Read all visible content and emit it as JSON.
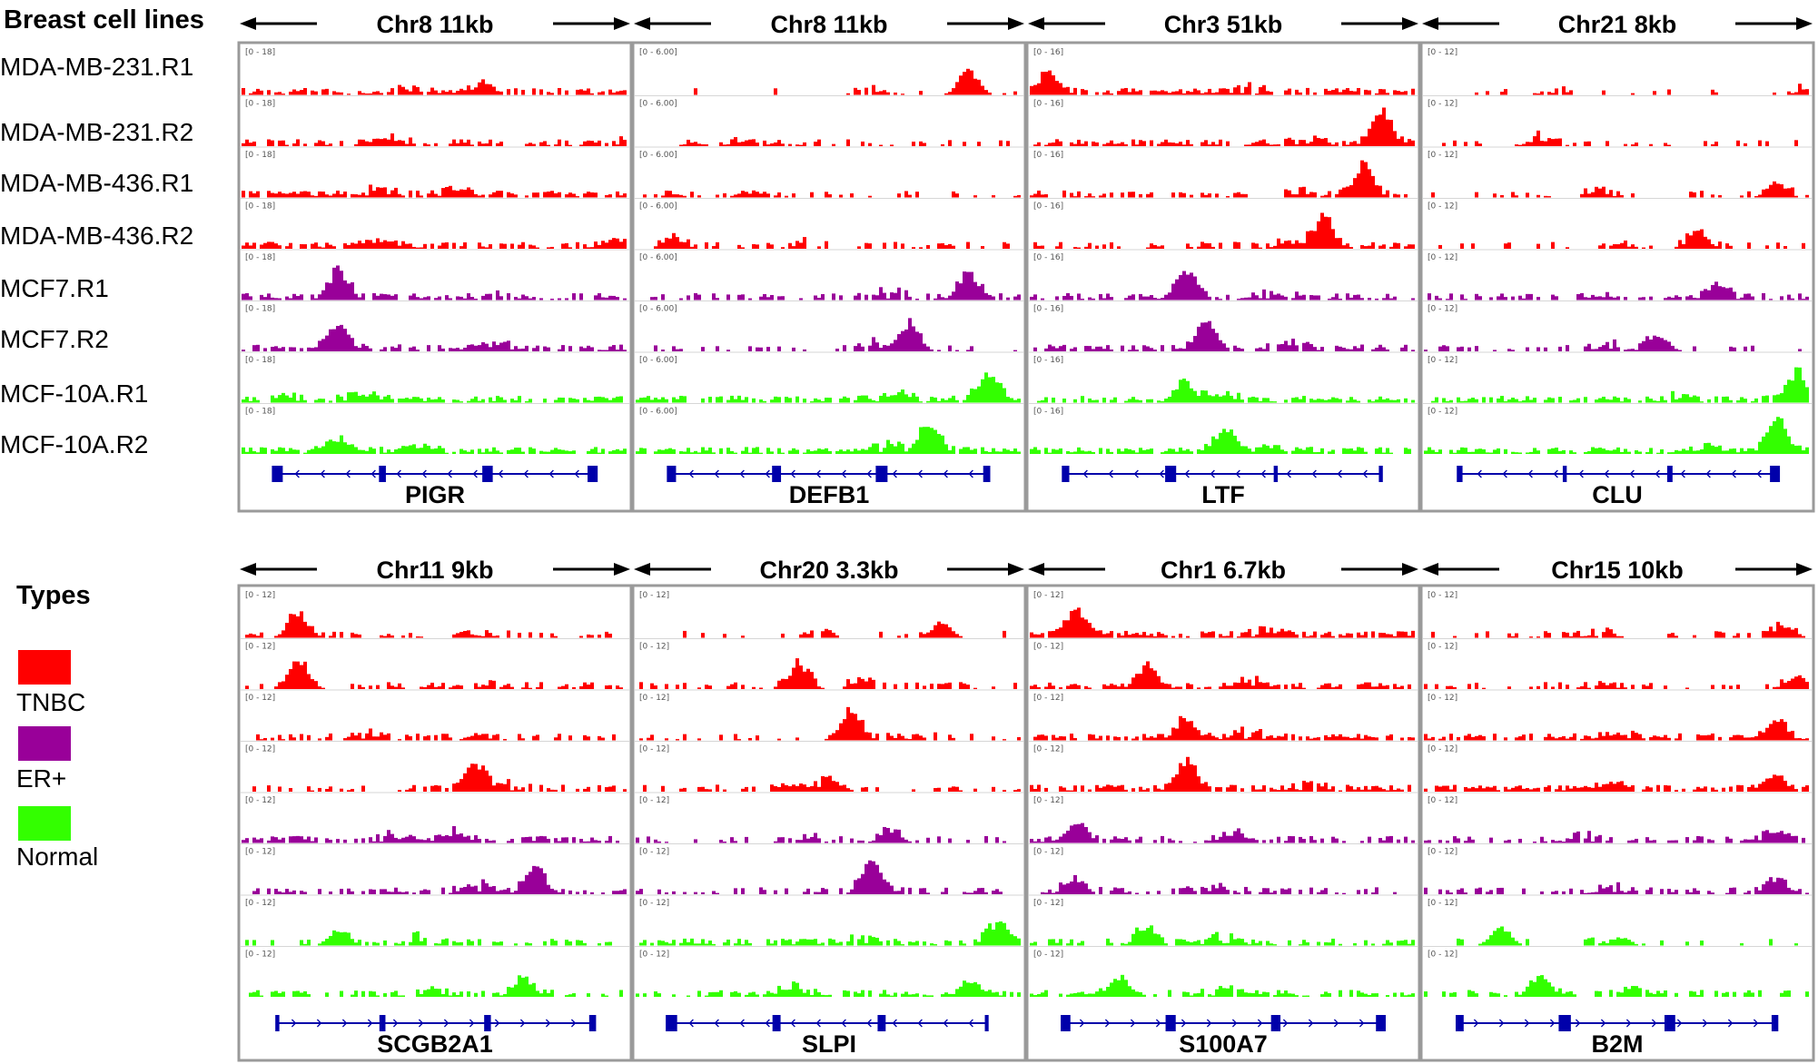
{
  "title": "Breast cell lines",
  "cell_lines": [
    "MDA-MB-231.R1",
    "MDA-MB-231.R2",
    "MDA-MB-436.R1",
    "MDA-MB-436.R2",
    "MCF7.R1",
    "MCF7.R2",
    "MCF-10A.R1",
    "MCF-10A.R2"
  ],
  "track_types": [
    "TNBC",
    "TNBC",
    "TNBC",
    "TNBC",
    "ER+",
    "ER+",
    "Normal",
    "Normal"
  ],
  "legend": {
    "title": "Types",
    "items": [
      {
        "label": "TNBC",
        "color": "#ff0000"
      },
      {
        "label": "ER+",
        "color": "#990099"
      },
      {
        "label": "Normal",
        "color": "#33ff00"
      }
    ]
  },
  "colors": {
    "TNBC": "#ff0000",
    "ER+": "#990099",
    "Normal": "#33ff00",
    "gene": "#0000aa",
    "border": "#9a9a9a"
  },
  "panels": [
    {
      "region": "Chr8 11kb",
      "range": "[0 - 18]",
      "gene": "PIGR",
      "strand": "-",
      "peaks": [
        [
          0.62,
          1.0,
          0.55,
          0.95,
          0.25,
          0.25,
          0.12,
          0.25
        ],
        [
          0.32,
          0.25,
          0.2,
          0.2,
          0.85,
          0.8,
          0.12,
          0.4
        ]
      ],
      "density": [
        0.85,
        0.85,
        0.9,
        0.9,
        0.7,
        0.7,
        0.9,
        0.95
      ]
    },
    {
      "region": "Chr8 11kb",
      "range": "[0 - 6.00]",
      "gene": "DEFB1",
      "strand": "-",
      "peaks": [
        [
          0.85,
          0.15,
          0.1,
          0.1,
          0.85,
          0.7,
          0.9,
          0.75
        ],
        [
          0.72,
          0.1,
          0.1,
          0.35,
          0.8,
          0.75,
          0.85,
          0.8
        ]
      ],
      "density": [
        0.08,
        0.3,
        0.35,
        0.35,
        0.45,
        0.4,
        0.85,
        0.9
      ]
    },
    {
      "region": "Chr3 51kb",
      "range": "[0 - 16]",
      "gene": "LTF",
      "strand": "-",
      "peaks": [
        [
          0.05,
          0.9,
          0.85,
          0.75,
          0.4,
          0.45,
          0.4,
          0.5
        ],
        [
          0.6,
          0.95,
          0.9,
          0.85,
          0.75,
          0.85,
          0.5,
          0.75
        ]
      ],
      "density": [
        0.9,
        0.9,
        0.6,
        0.6,
        0.8,
        0.8,
        0.9,
        0.95
      ]
    },
    {
      "region": "Chr21 8kb",
      "range": "[0 - 12]",
      "gene": "CLU",
      "strand": "-",
      "peaks": [
        [
          0.98,
          0.3,
          0.9,
          0.7,
          0.75,
          0.6,
          0.95,
          0.9
        ],
        [
          0.2,
          0.1,
          0.4,
          0.5,
          0.4,
          0.45,
          0.8,
          0.95
        ]
      ],
      "density": [
        0.15,
        0.25,
        0.3,
        0.3,
        0.6,
        0.4,
        0.85,
        0.95
      ]
    },
    {
      "region": "Chr11 9kb",
      "range": "[0 - 12]",
      "gene": "SCGB2A1",
      "strand": "+",
      "peaks": [
        [
          0.15,
          0.15,
          0.6,
          0.6,
          0.55,
          0.75,
          0.25,
          0.72
        ],
        [
          0.7,
          0.8,
          0.15,
          0.85,
          0.3,
          0.7,
          0.4,
          0.5
        ]
      ],
      "density": [
        0.55,
        0.55,
        0.5,
        0.55,
        0.8,
        0.75,
        0.5,
        0.55
      ]
    },
    {
      "region": "Chr20 3.3kb",
      "range": "[0 - 12]",
      "gene": "SLPI",
      "strand": "-",
      "peaks": [
        [
          0.78,
          0.42,
          0.55,
          0.5,
          0.65,
          0.6,
          0.92,
          0.85
        ],
        [
          0.45,
          0.68,
          0.9,
          0.32,
          0.35,
          0.75,
          0.6,
          0.3
        ]
      ],
      "density": [
        0.2,
        0.45,
        0.5,
        0.5,
        0.45,
        0.5,
        0.8,
        0.85
      ]
    },
    {
      "region": "Chr1 6.7kb",
      "range": "[0 - 12]",
      "gene": "S100A7",
      "strand": "+",
      "peaks": [
        [
          0.12,
          0.3,
          0.4,
          0.4,
          0.12,
          0.12,
          0.3,
          0.23
        ],
        [
          0.7,
          0.65,
          0.6,
          0.9,
          0.55,
          0.45,
          0.5,
          0.5
        ]
      ],
      "density": [
        0.85,
        0.85,
        0.85,
        0.85,
        0.75,
        0.6,
        0.7,
        0.85
      ]
    },
    {
      "region": "Chr15 10kb",
      "range": "[0 - 12]",
      "gene": "B2M",
      "strand": "+",
      "peaks": [
        [
          0.92,
          0.95,
          0.9,
          0.9,
          0.9,
          0.9,
          0.2,
          0.3
        ],
        [
          0.35,
          0.4,
          0.5,
          0.45,
          0.35,
          0.45,
          0.5,
          0.6
        ]
      ],
      "density": [
        0.4,
        0.45,
        0.8,
        0.85,
        0.6,
        0.6,
        0.2,
        0.5
      ]
    }
  ]
}
